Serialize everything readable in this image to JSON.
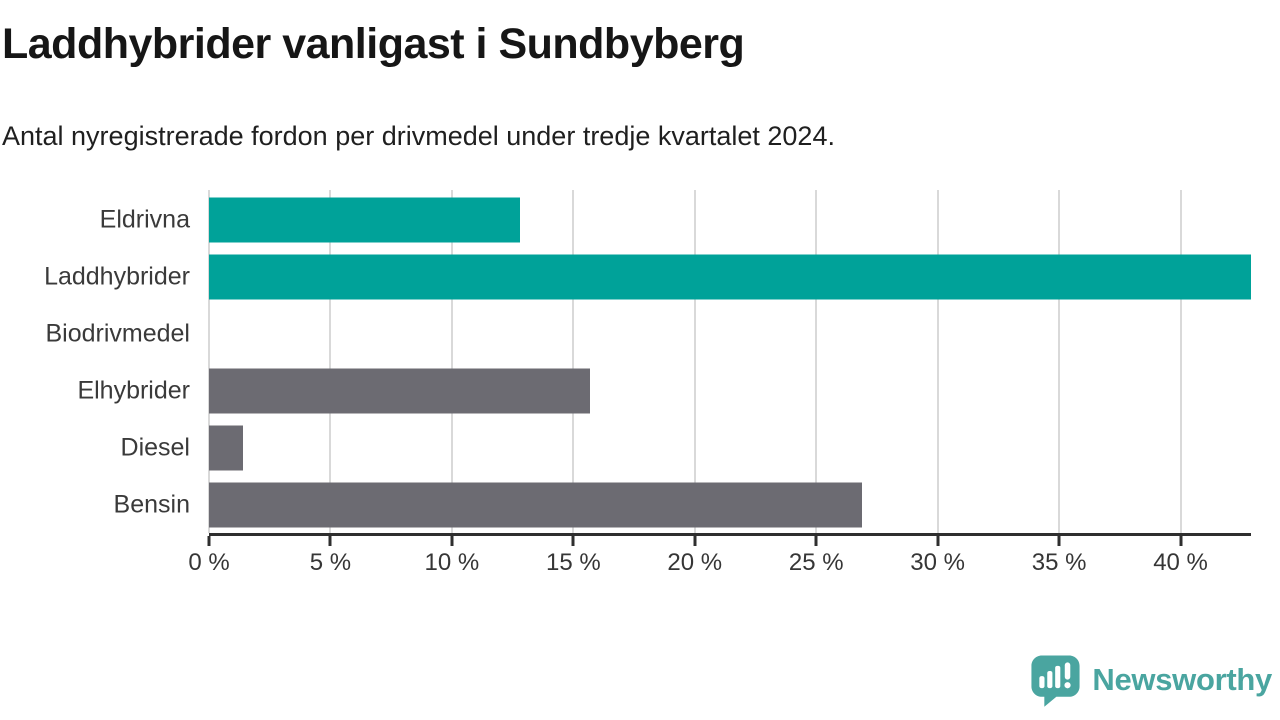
{
  "header": {
    "title": "Laddhybrider vanligast i Sundbyberg",
    "subtitle": "Antal nyregistrerade fordon per drivmedel under tredje kvartalet 2024."
  },
  "chart_data": {
    "type": "bar",
    "orientation": "horizontal",
    "title": "Laddhybrider vanligast i Sundbyberg",
    "subtitle": "Antal nyregistrerade fordon per drivmedel under tredje kvartalet 2024.",
    "categories": [
      "Eldrivna",
      "Laddhybrider",
      "Biodrivmedel",
      "Elhybrider",
      "Diesel",
      "Bensin"
    ],
    "values": [
      12.8,
      42.9,
      0,
      15.7,
      1.4,
      26.9
    ],
    "unit": "%",
    "xlim": [
      0,
      42.9
    ],
    "xticks": [
      {
        "value": 0,
        "label": "0 %"
      },
      {
        "value": 5,
        "label": "5 %"
      },
      {
        "value": 10,
        "label": "10 %"
      },
      {
        "value": 15,
        "label": "15 %"
      },
      {
        "value": 20,
        "label": "20 %"
      },
      {
        "value": 25,
        "label": "25 %"
      },
      {
        "value": 30,
        "label": "30 %"
      },
      {
        "value": 35,
        "label": "35 %"
      },
      {
        "value": 40,
        "label": "40 %"
      }
    ],
    "bar_colors": [
      "#00a299",
      "#00a299",
      "#6c6b72",
      "#6c6b72",
      "#6c6b72",
      "#6c6b72"
    ],
    "grid": "vertical-only",
    "legend": "none"
  },
  "colors": {
    "highlight_bar": "#00a299",
    "default_bar": "#6c6b72",
    "gridline": "#d9d9d9",
    "axis": "#2f2f2f",
    "logo_teal": "#4aa5a0"
  },
  "logo": {
    "text": "Newsworthy",
    "icon": "speech-bubble-bar-chart-icon"
  }
}
